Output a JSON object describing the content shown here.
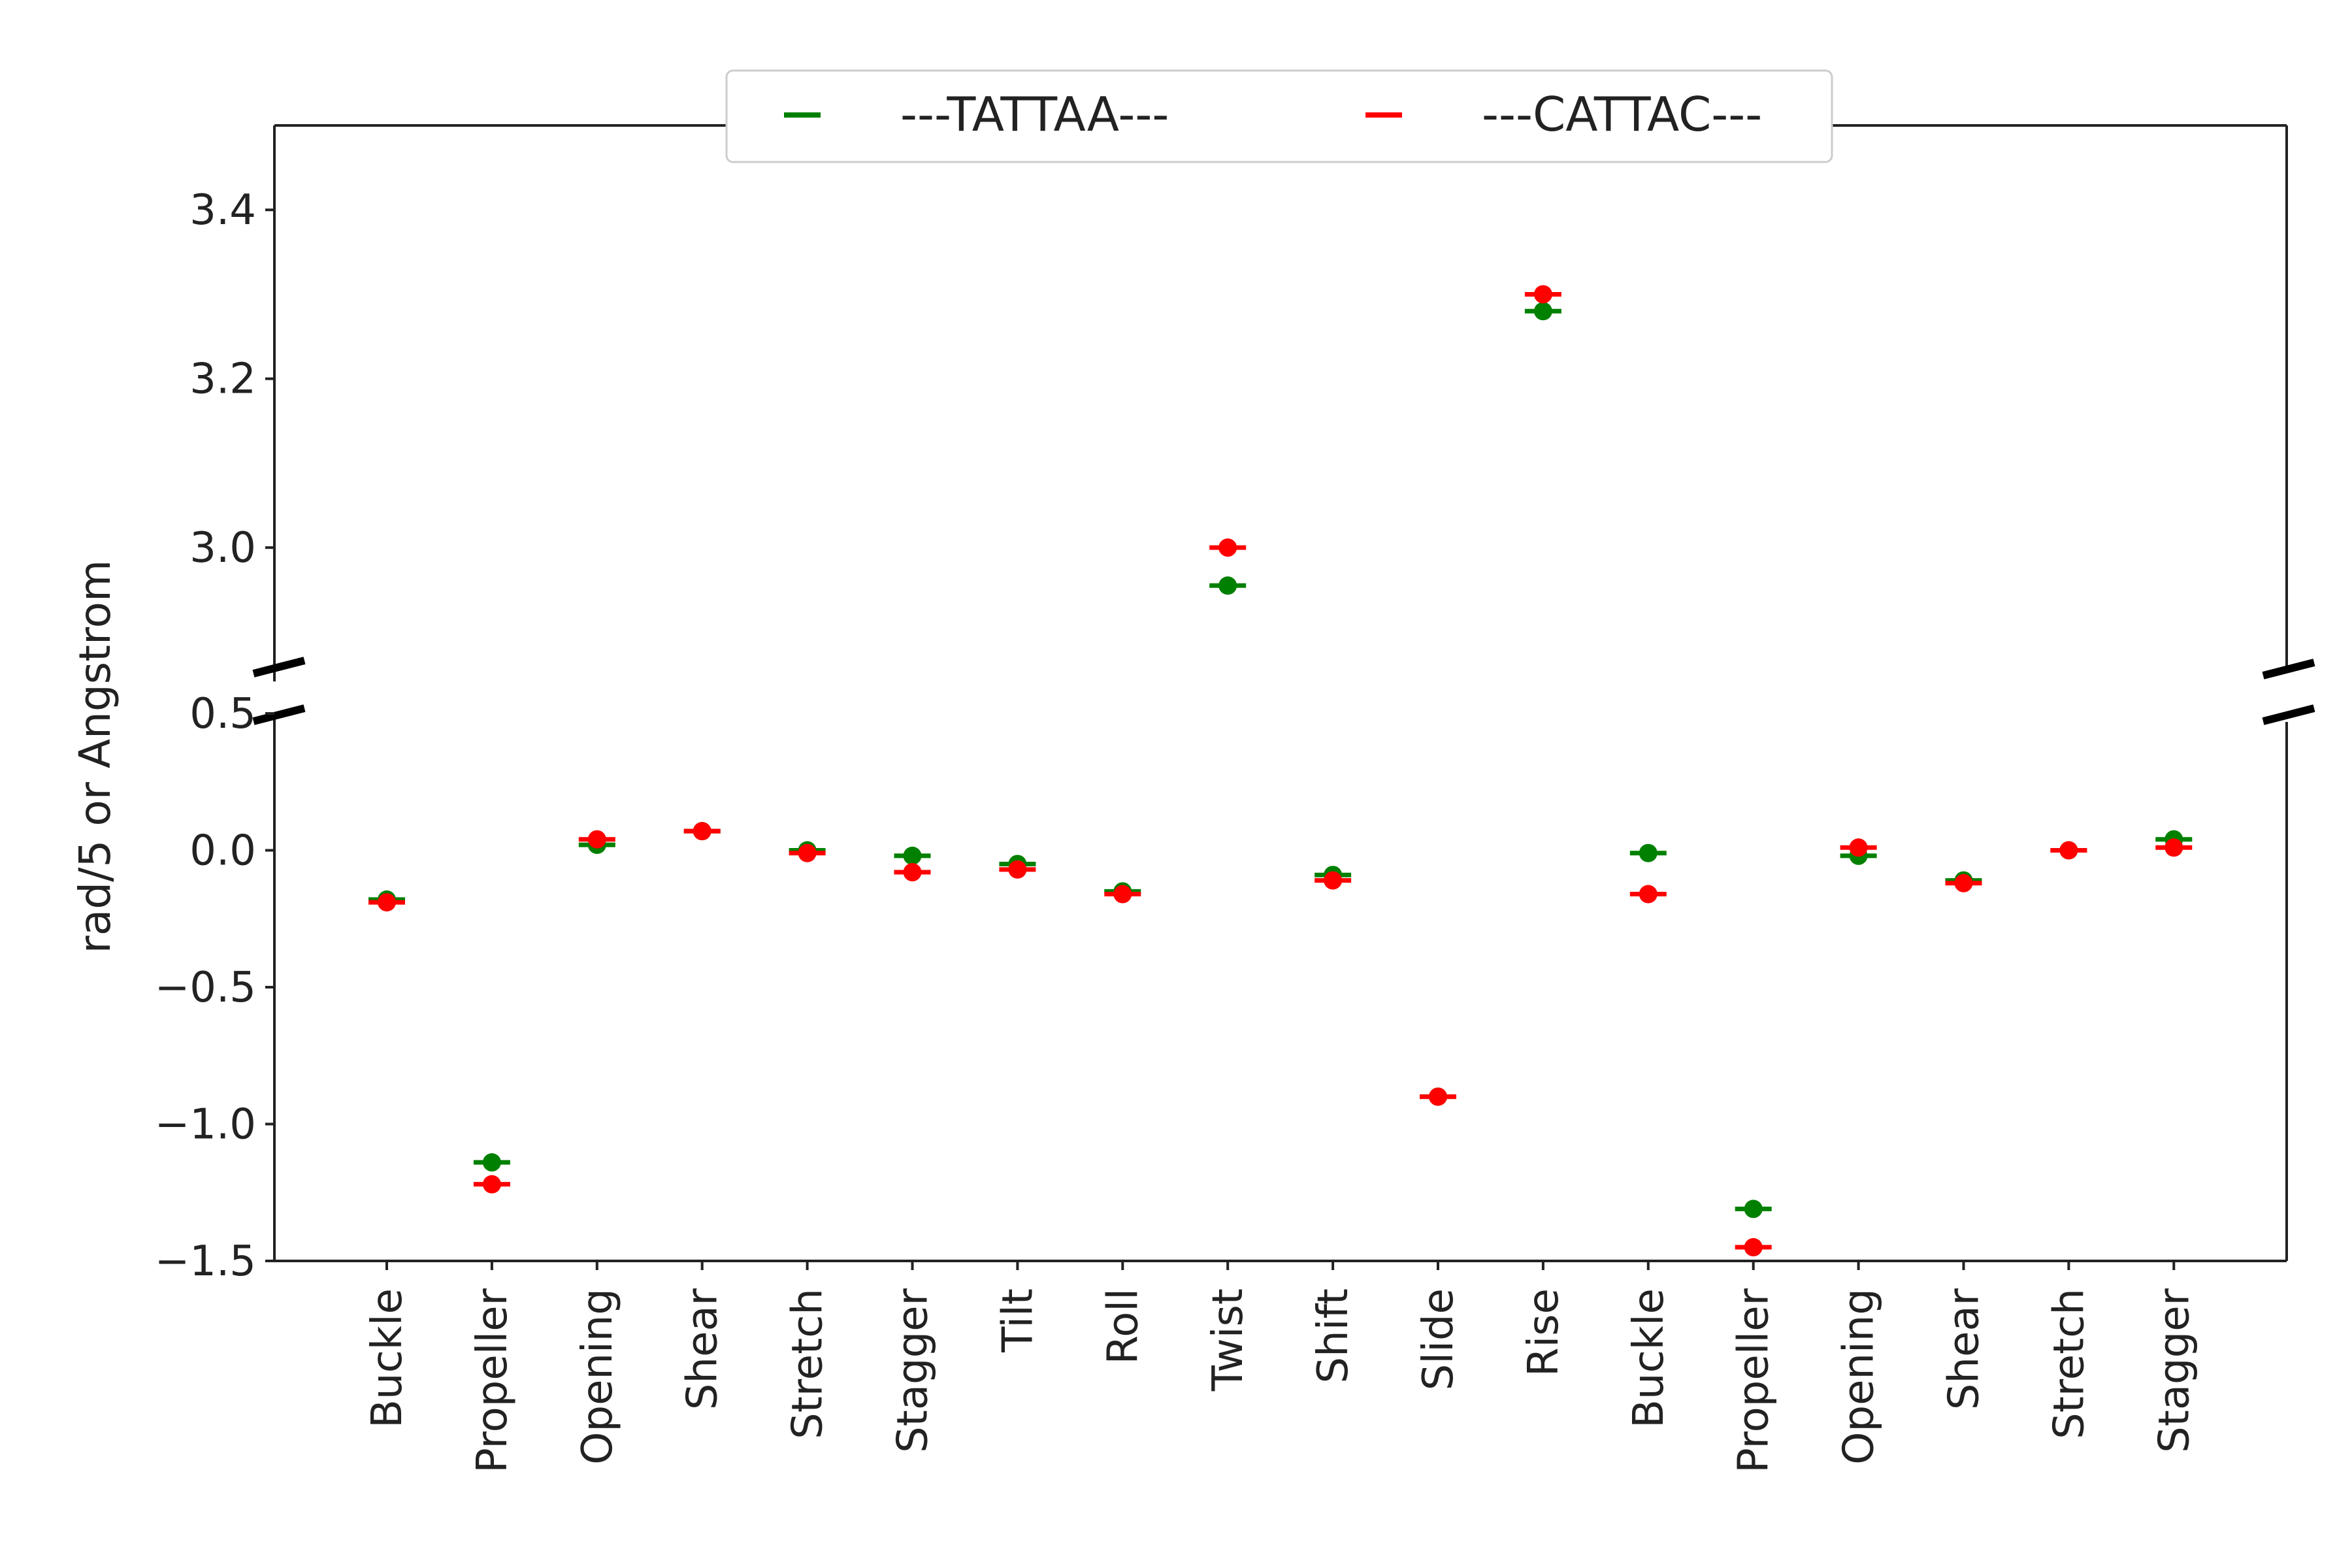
{
  "chart_data": {
    "type": "scatter",
    "title": "",
    "xlabel": "",
    "ylabel": "rad/5 or Angstrom",
    "categories": [
      "Buckle",
      "Propeller",
      "Opening",
      "Shear",
      "Stretch",
      "Stagger",
      "Tilt",
      "Roll",
      "Twist",
      "Shift",
      "Slide",
      "Rise",
      "Buckle",
      "Propeller",
      "Opening",
      "Shear",
      "Stretch",
      "Stagger"
    ],
    "y_axis_upper": {
      "ylim": [
        2.85,
        3.5
      ],
      "ticks": [
        3.0,
        3.2,
        3.4
      ],
      "tick_labels": [
        "3.0",
        "3.2",
        "3.4"
      ]
    },
    "y_axis_lower": {
      "ylim": [
        -1.5,
        0.5
      ],
      "ticks": [
        -1.5,
        -1.0,
        -0.5,
        0.0,
        0.5
      ],
      "tick_labels": [
        "−1.5",
        "−1.0",
        "−0.5",
        "0.0",
        "0.5"
      ]
    },
    "axis_break": true,
    "grid": false,
    "legend_position": "top-center",
    "marker": "circle with horizontal error bar",
    "series": [
      {
        "name": "---TATTAA---",
        "color": "#008000",
        "values": [
          -0.18,
          -1.14,
          0.02,
          0.07,
          0.0,
          -0.02,
          -0.05,
          -0.15,
          2.955,
          -0.09,
          -0.9,
          3.28,
          -0.01,
          -1.31,
          -0.02,
          -0.11,
          0.0,
          0.04
        ]
      },
      {
        "name": "---CATTAC---",
        "color": "#ff0000",
        "values": [
          -0.19,
          -1.22,
          0.04,
          0.07,
          -0.01,
          -0.08,
          -0.07,
          -0.16,
          3.0,
          -0.11,
          -0.9,
          3.3,
          -0.16,
          -1.45,
          0.01,
          -0.12,
          0.0,
          0.01
        ]
      }
    ]
  }
}
